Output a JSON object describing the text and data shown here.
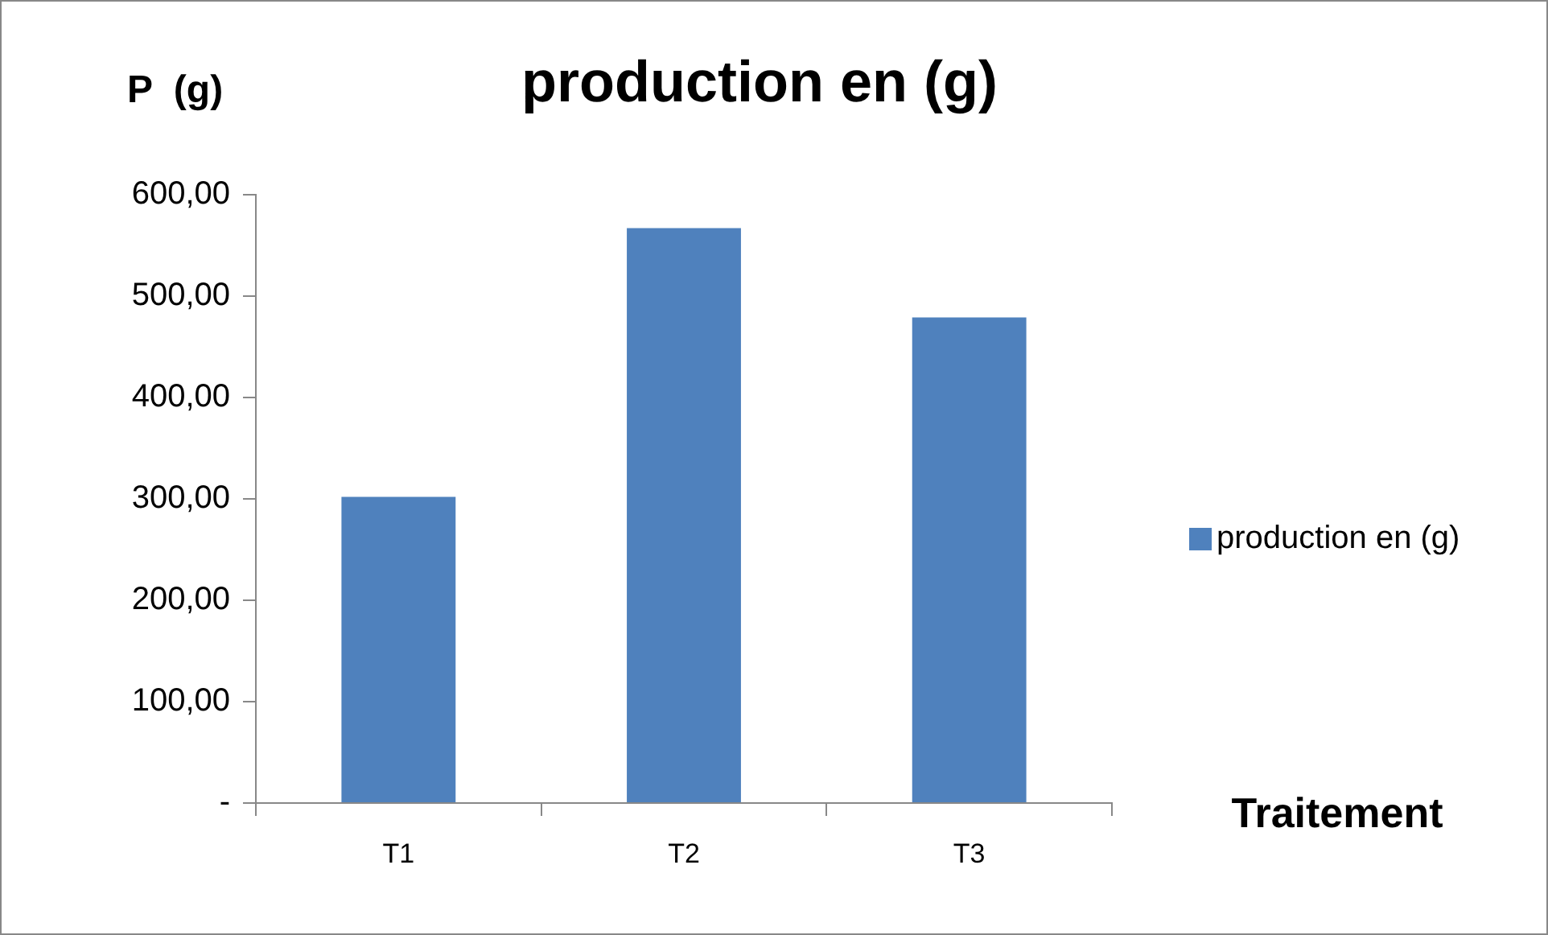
{
  "chart_data": {
    "type": "bar",
    "title": "production en (g)",
    "ylabel": "P  (g)",
    "xlabel": "Traitement",
    "categories": [
      "T1",
      "T2",
      "T3"
    ],
    "series": [
      {
        "name": "production en (g)",
        "color": "#4f81bd",
        "values": [
          302,
          567,
          479
        ]
      }
    ],
    "ylim": [
      0,
      600
    ],
    "yticks": [
      {
        "value": 0,
        "label": "-"
      },
      {
        "value": 100,
        "label": "100,00"
      },
      {
        "value": 200,
        "label": "200,00"
      },
      {
        "value": 300,
        "label": "300,00"
      },
      {
        "value": 400,
        "label": "400,00"
      },
      {
        "value": 500,
        "label": "500,00"
      },
      {
        "value": 600,
        "label": "600,00"
      }
    ],
    "grid": false,
    "legend": "right"
  }
}
